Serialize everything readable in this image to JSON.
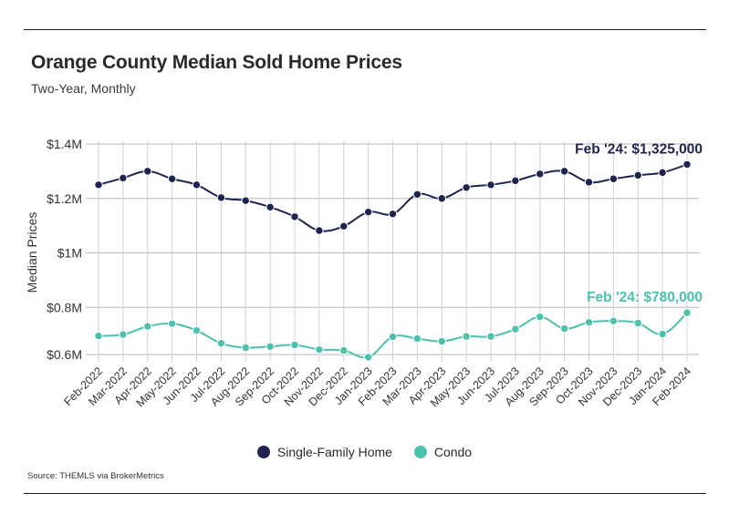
{
  "header": {
    "title": "Orange County Median Sold Home Prices",
    "subtitle": "Two-Year, Monthly"
  },
  "source": "Source:  THEMLS via BrokerMetrics",
  "colors": {
    "single_family": "#1e2450",
    "condo": "#4cc1ad",
    "grid": "#b8b8b8"
  },
  "chart_data": {
    "type": "line",
    "title": "Orange County Median Sold Home Prices",
    "subtitle": "Two-Year, Monthly",
    "xlabel": "",
    "ylabel": "Median Prices",
    "ylim": [
      580000,
      1400000
    ],
    "yticks": [
      {
        "value": 1400000,
        "label": "$1.4M"
      },
      {
        "value": 1200000,
        "label": "$1.2M"
      },
      {
        "value": 1000000,
        "label": "$1M"
      },
      {
        "value": 800000,
        "label": "$0.8M"
      },
      {
        "value": 600000,
        "label": "$0.6M"
      }
    ],
    "categories": [
      "Feb-2022",
      "Mar-2022",
      "Apr-2022",
      "May-2022",
      "Jun-2022",
      "Jul-2022",
      "Aug-2022",
      "Sep-2022",
      "Oct-2022",
      "Nov-2022",
      "Dec-2022",
      "Jan-2023",
      "Feb-2023",
      "Mar-2023",
      "Apr-2023",
      "May-2023",
      "Jun-2023",
      "Jul-2023",
      "Aug-2023",
      "Sep-2023",
      "Oct-2023",
      "Nov-2023",
      "Dec-2023",
      "Jan-2024",
      "Feb-2024"
    ],
    "series": [
      {
        "name": "Single-Family Home",
        "color": "#1e2450",
        "values": [
          1250000,
          1275000,
          1300000,
          1272000,
          1250000,
          1203000,
          1192000,
          1168000,
          1133000,
          1082000,
          1098000,
          1150000,
          1143000,
          1215000,
          1200000,
          1240000,
          1250000,
          1265000,
          1290000,
          1300000,
          1260000,
          1272000,
          1285000,
          1295000,
          1325000
        ],
        "annotation": "Feb '24: $1,325,000"
      },
      {
        "name": "Condo",
        "color": "#4cc1ad",
        "values": [
          695000,
          700000,
          730000,
          740000,
          715000,
          668000,
          652000,
          656000,
          662000,
          645000,
          642000,
          617000,
          692000,
          685000,
          675000,
          693000,
          693000,
          720000,
          765000,
          722000,
          745000,
          750000,
          742000,
          702000,
          780000
        ],
        "annotation": "Feb '24: $780,000"
      }
    ],
    "legend": [
      "Single-Family Home",
      "Condo"
    ],
    "legend_position": "bottom-center",
    "grid": true
  }
}
